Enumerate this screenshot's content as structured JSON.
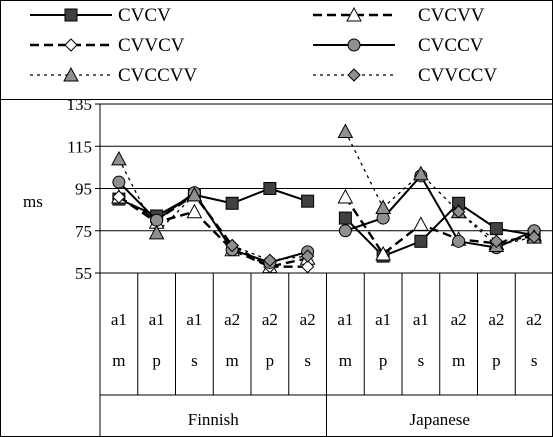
{
  "chart_data": {
    "type": "line",
    "title": "",
    "ylabel": "ms",
    "xlabel": "",
    "ylim": [
      55,
      135
    ],
    "yticks": [
      55,
      75,
      95,
      115,
      135
    ],
    "grid": true,
    "legend_position": "top",
    "categories": [
      {
        "level1": "a1",
        "level2": "m",
        "group": "Finnish"
      },
      {
        "level1": "a1",
        "level2": "p",
        "group": "Finnish"
      },
      {
        "level1": "a1",
        "level2": "s",
        "group": "Finnish"
      },
      {
        "level1": "a2",
        "level2": "m",
        "group": "Finnish"
      },
      {
        "level1": "a2",
        "level2": "p",
        "group": "Finnish"
      },
      {
        "level1": "a2",
        "level2": "s",
        "group": "Finnish"
      },
      {
        "level1": "a1",
        "level2": "m",
        "group": "Japanese"
      },
      {
        "level1": "a1",
        "level2": "p",
        "group": "Japanese"
      },
      {
        "level1": "a1",
        "level2": "s",
        "group": "Japanese"
      },
      {
        "level1": "a2",
        "level2": "m",
        "group": "Japanese"
      },
      {
        "level1": "a2",
        "level2": "p",
        "group": "Japanese"
      },
      {
        "level1": "a2",
        "level2": "s",
        "group": "Japanese"
      }
    ],
    "groups": [
      "Finnish",
      "Japanese"
    ],
    "series": [
      {
        "name": "CVCV",
        "line": "solid",
        "marker": "square",
        "fill": "#404040",
        "values": [
          90,
          82,
          92,
          88,
          95,
          89,
          81,
          63,
          70,
          88,
          76,
          73
        ]
      },
      {
        "name": "CVCVV",
        "line": "dashed",
        "marker": "triangle",
        "fill": "#ffffff",
        "values": [
          91,
          79,
          84,
          66,
          58,
          62,
          91,
          64,
          78,
          71,
          69,
          73
        ]
      },
      {
        "name": "CVVCV",
        "line": "dashed",
        "marker": "diamond",
        "fill": "#ffffff",
        "values": [
          91,
          80,
          92,
          68,
          58,
          58,
          null,
          null,
          null,
          null,
          null,
          null
        ]
      },
      {
        "name": "CVCCV",
        "line": "solid",
        "marker": "circle",
        "fill": "#909090",
        "values": [
          98,
          80,
          93,
          66,
          60,
          65,
          75,
          81,
          101,
          70,
          67,
          75
        ]
      },
      {
        "name": "CVCCVV",
        "line": "dotted",
        "marker": "triangle",
        "fill": "#909090",
        "values": [
          109,
          74,
          92,
          null,
          null,
          null,
          122,
          86,
          102,
          84,
          68,
          72
        ]
      },
      {
        "name": "CVVCCV",
        "line": "dotted",
        "marker": "diamond",
        "fill": "#909090",
        "values": [
          null,
          null,
          null,
          68,
          61,
          63,
          null,
          null,
          null,
          84,
          70,
          72
        ]
      }
    ]
  }
}
